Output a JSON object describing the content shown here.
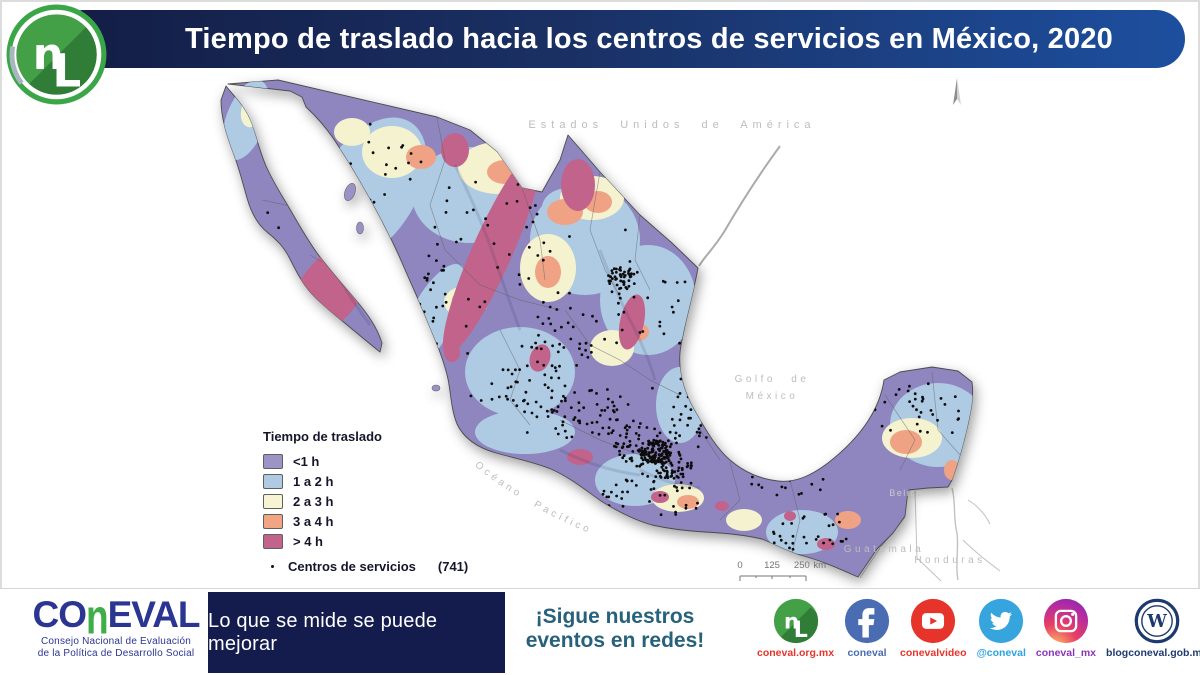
{
  "header": {
    "title": "Tiempo de traslado hacia los centros de servicios en México, 2020"
  },
  "map": {
    "labels": {
      "usa": "Estados Unidos de América",
      "gulf_line1": "Golfo de",
      "gulf_line2": "México",
      "pacific": "Océano Pacífico",
      "guatemala": "Guatemala",
      "honduras": "Honduras",
      "belize": "Belice"
    },
    "scalebar": {
      "t0": "0",
      "t1": "125",
      "t2": "250 km"
    },
    "legend": {
      "title": "Tiempo de traslado",
      "items": [
        {
          "label": "<1 h",
          "color": "#9c93c6"
        },
        {
          "label": "1 a 2 h",
          "color": "#aecbe3"
        },
        {
          "label": "2 a 3 h",
          "color": "#f6f4d2"
        },
        {
          "label": "3 a 4 h",
          "color": "#f2a583"
        },
        {
          "label": "> 4 h",
          "color": "#c2638b"
        }
      ],
      "points_label": "Centros de servicios",
      "points_count": "(741)"
    },
    "dot_clusters": [
      [
        622,
        278,
        14,
        12,
        45
      ],
      [
        650,
        300,
        40,
        45,
        25
      ],
      [
        655,
        452,
        16,
        12,
        110
      ],
      [
        645,
        445,
        32,
        22,
        70
      ],
      [
        672,
        465,
        20,
        14,
        60
      ],
      [
        590,
        415,
        45,
        28,
        55
      ],
      [
        530,
        390,
        40,
        30,
        40
      ],
      [
        565,
        340,
        45,
        35,
        35
      ],
      [
        480,
        240,
        70,
        70,
        35
      ],
      [
        380,
        165,
        45,
        45,
        20
      ],
      [
        430,
        310,
        18,
        45,
        20
      ],
      [
        690,
        420,
        22,
        30,
        30
      ],
      [
        655,
        495,
        55,
        22,
        45
      ],
      [
        810,
        530,
        45,
        22,
        30
      ],
      [
        790,
        480,
        40,
        18,
        20
      ],
      [
        920,
        415,
        48,
        32,
        32
      ],
      [
        300,
        200,
        45,
        90,
        14
      ],
      [
        560,
        330,
        180,
        120,
        40
      ]
    ]
  },
  "footer": {
    "wordmark": {
      "part1": "CO",
      "part2": "n",
      "part3": "EVAL",
      "sub1": "Consejo Nacional de Evaluación",
      "sub2": "de la Política de Desarrollo Social"
    },
    "motto": "Lo que se mide se puede mejorar",
    "cta_line1": "¡Sigue nuestros",
    "cta_line2": "eventos en redes!",
    "social": [
      {
        "name": "coneval-web",
        "label": "coneval.org.mx",
        "color": "#e5332a"
      },
      {
        "name": "facebook",
        "label": "coneval",
        "color": "#4a6cb3"
      },
      {
        "name": "youtube",
        "label": "conevalvideo",
        "color": "#e6342b"
      },
      {
        "name": "twitter",
        "label": "@coneval",
        "color": "#2ba3dc"
      },
      {
        "name": "instagram",
        "label": "coneval_mx",
        "color": "#8a35b8"
      },
      {
        "name": "wordpress",
        "label": "blogconeval.gob.mx",
        "color": "#1d3a6e"
      }
    ]
  }
}
